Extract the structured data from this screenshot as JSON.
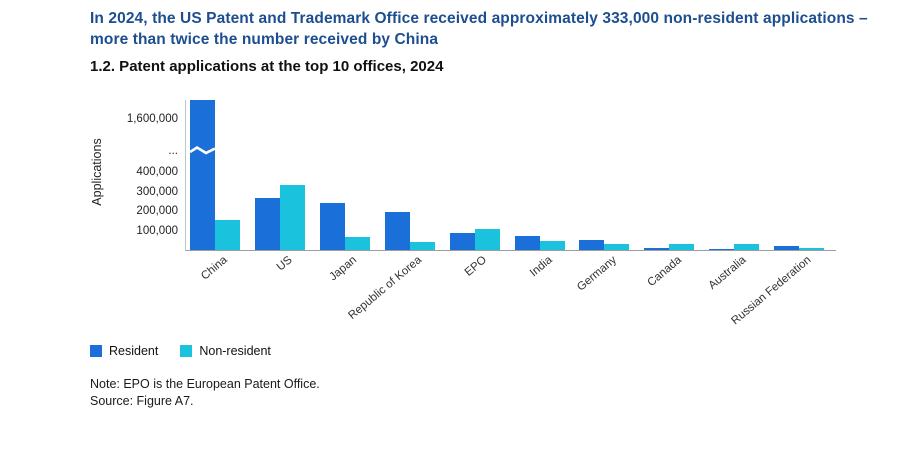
{
  "header": {
    "headline": "In 2024, the US Patent and Trademark Office received approximately 333,000 non-resident applications – more than twice the number received by China",
    "figure_title": "1.2. Patent applications at the top 10 offices, 2024"
  },
  "chart_data": {
    "type": "bar",
    "title": "1.2. Patent applications at the top 10 offices, 2024",
    "xlabel": "",
    "ylabel": "Applications",
    "categories": [
      "China",
      "US",
      "Japan",
      "Republic of Korea",
      "EPO",
      "India",
      "Germany",
      "Canada",
      "Australia",
      "Russian Federation"
    ],
    "series": [
      {
        "name": "Resident",
        "color": "#1B6FD8",
        "values": [
          1650000,
          270000,
          240000,
          195000,
          87000,
          74000,
          50000,
          8000,
          3000,
          23000
        ]
      },
      {
        "name": "Non-resident",
        "color": "#1BC2DE",
        "values": [
          155000,
          333000,
          65000,
          43000,
          108000,
          46000,
          29000,
          33000,
          33000,
          8000
        ]
      }
    ],
    "ytick_labels": [
      "1,600,000",
      "...",
      "400,000",
      "300,000",
      "200,000",
      "100,000"
    ],
    "axis_break": true,
    "axis_break_between": [
      400000,
      1600000
    ],
    "ylim": [
      0,
      1700000
    ],
    "grid": false,
    "legend_position": "bottom-left"
  },
  "legend": {
    "items": [
      {
        "label": "Resident",
        "color": "#1B6FD8"
      },
      {
        "label": "Non-resident",
        "color": "#1BC2DE"
      }
    ]
  },
  "notes": {
    "note": "Note: EPO is the European Patent Office.",
    "source": "Source: Figure A7."
  }
}
